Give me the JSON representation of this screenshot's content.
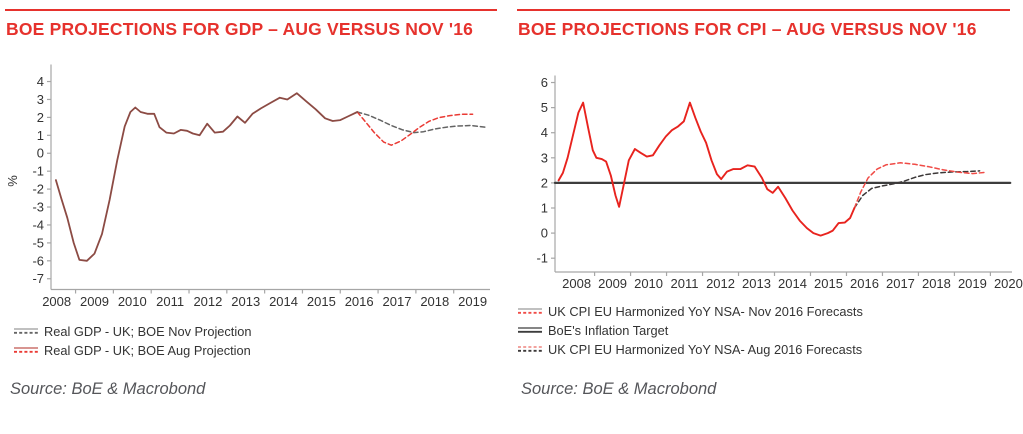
{
  "page": {
    "background": "#ffffff",
    "accent_red": "#e6322d",
    "axis_color": "#a6a6a6",
    "tick_text_color": "#333333"
  },
  "panels": [
    {
      "source": "Source: BoE & Macrobond"
    },
    {
      "source": "Source: BoE & Macrobond"
    }
  ],
  "chart_data": [
    {
      "type": "line",
      "title": "BOE PROJECTIONS FOR GDP – AUG VERSUS NOV '16",
      "ylabel": "%",
      "xlabel": "",
      "grid": false,
      "legend_position": "below-left",
      "xlim": [
        2008.35,
        2019.96
      ],
      "ylim": [
        -7.6,
        4.95
      ],
      "x_tick_labels": [
        2008,
        2009,
        2010,
        2011,
        2012,
        2013,
        2014,
        2015,
        2016,
        2017,
        2018,
        2019
      ],
      "y_tick_labels": [
        4,
        3,
        2,
        1,
        0,
        -1,
        -2,
        -3,
        -4,
        -5,
        -6,
        -7
      ],
      "series": [
        {
          "id": "gdp-nov-projection",
          "style": "dashed",
          "color": "#646464",
          "width": 1.5,
          "points": [
            [
              2016.45,
              2.3
            ],
            [
              2016.75,
              2.12
            ],
            [
              2017.05,
              1.85
            ],
            [
              2017.35,
              1.55
            ],
            [
              2017.65,
              1.3
            ],
            [
              2017.95,
              1.15
            ],
            [
              2018.2,
              1.2
            ],
            [
              2018.5,
              1.35
            ],
            [
              2018.8,
              1.45
            ],
            [
              2019.1,
              1.52
            ],
            [
              2019.45,
              1.55
            ],
            [
              2019.85,
              1.45
            ]
          ]
        },
        {
          "id": "gdp-aug-projection",
          "style": "dashed",
          "color": "#ea3a34",
          "width": 1.5,
          "points": [
            [
              2016.45,
              2.3
            ],
            [
              2016.65,
              1.8
            ],
            [
              2016.9,
              1.15
            ],
            [
              2017.15,
              0.62
            ],
            [
              2017.35,
              0.45
            ],
            [
              2017.6,
              0.68
            ],
            [
              2017.85,
              1.05
            ],
            [
              2018.1,
              1.45
            ],
            [
              2018.35,
              1.78
            ],
            [
              2018.6,
              1.98
            ],
            [
              2018.9,
              2.1
            ],
            [
              2019.2,
              2.17
            ],
            [
              2019.5,
              2.18
            ]
          ]
        },
        {
          "id": "gdp-history",
          "style": "solid",
          "color": "#8c4b44",
          "width": 1.8,
          "points": [
            [
              2008.48,
              -1.5
            ],
            [
              2008.62,
              -2.5
            ],
            [
              2008.78,
              -3.6
            ],
            [
              2008.95,
              -5.0
            ],
            [
              2009.1,
              -5.95
            ],
            [
              2009.3,
              -6.0
            ],
            [
              2009.5,
              -5.6
            ],
            [
              2009.7,
              -4.5
            ],
            [
              2009.9,
              -2.6
            ],
            [
              2010.1,
              -0.4
            ],
            [
              2010.3,
              1.5
            ],
            [
              2010.45,
              2.3
            ],
            [
              2010.58,
              2.55
            ],
            [
              2010.72,
              2.3
            ],
            [
              2010.9,
              2.2
            ],
            [
              2011.08,
              2.2
            ],
            [
              2011.22,
              1.45
            ],
            [
              2011.4,
              1.15
            ],
            [
              2011.6,
              1.1
            ],
            [
              2011.78,
              1.3
            ],
            [
              2011.95,
              1.25
            ],
            [
              2012.1,
              1.1
            ],
            [
              2012.28,
              1.0
            ],
            [
              2012.48,
              1.65
            ],
            [
              2012.68,
              1.15
            ],
            [
              2012.9,
              1.2
            ],
            [
              2013.08,
              1.55
            ],
            [
              2013.28,
              2.05
            ],
            [
              2013.48,
              1.7
            ],
            [
              2013.68,
              2.2
            ],
            [
              2013.9,
              2.5
            ],
            [
              2014.15,
              2.8
            ],
            [
              2014.4,
              3.1
            ],
            [
              2014.6,
              3.0
            ],
            [
              2014.85,
              3.35
            ],
            [
              2015.1,
              2.9
            ],
            [
              2015.35,
              2.45
            ],
            [
              2015.6,
              1.95
            ],
            [
              2015.8,
              1.8
            ],
            [
              2016.0,
              1.85
            ],
            [
              2016.2,
              2.05
            ],
            [
              2016.45,
              2.3
            ]
          ]
        }
      ],
      "legend": [
        {
          "label": "Real GDP - UK; BOE Nov Projection",
          "swatch": {
            "top": "#9b9b9b",
            "top_dash": false,
            "bottom": "#646464",
            "bottom_dash": true
          }
        },
        {
          "label": "Real GDP - UK; BOE Aug Projection",
          "swatch": {
            "top": "#c0564f",
            "top_dash": false,
            "bottom": "#ea3a34",
            "bottom_dash": true
          }
        }
      ]
    },
    {
      "type": "line",
      "title": "BOE PROJECTIONS FOR CPI – AUG VERSUS NOV '16",
      "ylabel": "",
      "xlabel": "",
      "grid": false,
      "legend_position": "below-left",
      "xlim": [
        2007.9,
        2020.6
      ],
      "ylim": [
        -1.55,
        6.28
      ],
      "x_tick_labels": [
        2008,
        2009,
        2010,
        2011,
        2012,
        2013,
        2014,
        2015,
        2016,
        2017,
        2018,
        2019,
        2020
      ],
      "y_tick_labels": [
        6,
        5,
        4,
        3,
        2,
        1,
        0,
        -1
      ],
      "inflation_target_value": 2.0,
      "series": [
        {
          "id": "inflation-target",
          "style": "solid",
          "color": "#3d3d3d",
          "width": 2.3,
          "points": [
            [
              2007.9,
              2.0
            ],
            [
              2020.55,
              2.0
            ]
          ]
        },
        {
          "id": "cpi-aug-forecast",
          "style": "dashed",
          "color": "#3c3838",
          "width": 1.5,
          "points": [
            [
              2016.22,
              1.0
            ],
            [
              2016.45,
              1.5
            ],
            [
              2016.7,
              1.78
            ],
            [
              2017.0,
              1.88
            ],
            [
              2017.3,
              1.96
            ],
            [
              2017.6,
              2.07
            ],
            [
              2017.9,
              2.22
            ],
            [
              2018.2,
              2.33
            ],
            [
              2018.55,
              2.4
            ],
            [
              2018.95,
              2.44
            ],
            [
              2019.35,
              2.45
            ],
            [
              2019.7,
              2.48
            ]
          ]
        },
        {
          "id": "cpi-nov-forecast",
          "style": "dashed",
          "color": "#f04b46",
          "width": 1.5,
          "points": [
            [
              2016.22,
              1.0
            ],
            [
              2016.4,
              1.65
            ],
            [
              2016.6,
              2.2
            ],
            [
              2016.85,
              2.55
            ],
            [
              2017.1,
              2.72
            ],
            [
              2017.5,
              2.8
            ],
            [
              2017.9,
              2.74
            ],
            [
              2018.3,
              2.64
            ],
            [
              2018.7,
              2.52
            ],
            [
              2019.1,
              2.43
            ],
            [
              2019.5,
              2.37
            ],
            [
              2019.85,
              2.42
            ]
          ]
        },
        {
          "id": "cpi-history",
          "style": "solid",
          "color": "#e8231e",
          "width": 1.9,
          "points": [
            [
              2008.0,
              2.1
            ],
            [
              2008.12,
              2.4
            ],
            [
              2008.25,
              3.0
            ],
            [
              2008.4,
              3.9
            ],
            [
              2008.55,
              4.8
            ],
            [
              2008.68,
              5.2
            ],
            [
              2008.82,
              4.2
            ],
            [
              2008.95,
              3.3
            ],
            [
              2009.05,
              3.0
            ],
            [
              2009.2,
              2.95
            ],
            [
              2009.32,
              2.85
            ],
            [
              2009.45,
              2.3
            ],
            [
              2009.58,
              1.5
            ],
            [
              2009.68,
              1.05
            ],
            [
              2009.82,
              2.0
            ],
            [
              2009.95,
              2.9
            ],
            [
              2010.12,
              3.35
            ],
            [
              2010.28,
              3.2
            ],
            [
              2010.45,
              3.05
            ],
            [
              2010.62,
              3.1
            ],
            [
              2010.8,
              3.5
            ],
            [
              2010.98,
              3.85
            ],
            [
              2011.15,
              4.1
            ],
            [
              2011.32,
              4.25
            ],
            [
              2011.48,
              4.45
            ],
            [
              2011.65,
              5.2
            ],
            [
              2011.8,
              4.6
            ],
            [
              2011.95,
              4.05
            ],
            [
              2012.1,
              3.6
            ],
            [
              2012.25,
              2.9
            ],
            [
              2012.4,
              2.35
            ],
            [
              2012.52,
              2.15
            ],
            [
              2012.68,
              2.45
            ],
            [
              2012.85,
              2.55
            ],
            [
              2013.05,
              2.55
            ],
            [
              2013.25,
              2.7
            ],
            [
              2013.45,
              2.65
            ],
            [
              2013.65,
              2.2
            ],
            [
              2013.8,
              1.75
            ],
            [
              2013.95,
              1.6
            ],
            [
              2014.1,
              1.85
            ],
            [
              2014.3,
              1.4
            ],
            [
              2014.5,
              0.9
            ],
            [
              2014.7,
              0.5
            ],
            [
              2014.9,
              0.2
            ],
            [
              2015.08,
              0.0
            ],
            [
              2015.28,
              -0.1
            ],
            [
              2015.48,
              0.0
            ],
            [
              2015.62,
              0.1
            ],
            [
              2015.78,
              0.4
            ],
            [
              2015.95,
              0.42
            ],
            [
              2016.1,
              0.6
            ],
            [
              2016.22,
              1.0
            ]
          ]
        }
      ],
      "legend": [
        {
          "label": "UK CPI EU Harmonized YoY NSA- Nov 2016 Forecasts",
          "swatch": {
            "top": "#9b9b9b",
            "top_dash": false,
            "bottom": "#f04b46",
            "bottom_dash": true
          }
        },
        {
          "label": "BoE's Inflation Target",
          "swatch": {
            "top": "#3d3d3d",
            "top_dash": false,
            "bottom": "#3d3d3d",
            "bottom_dash": false
          }
        },
        {
          "label": "UK CPI EU Harmonized YoY NSA- Aug 2016 Forecasts",
          "swatch": {
            "top": "#ea6a64",
            "top_dash": true,
            "bottom": "#3c3838",
            "bottom_dash": true
          }
        }
      ]
    }
  ]
}
